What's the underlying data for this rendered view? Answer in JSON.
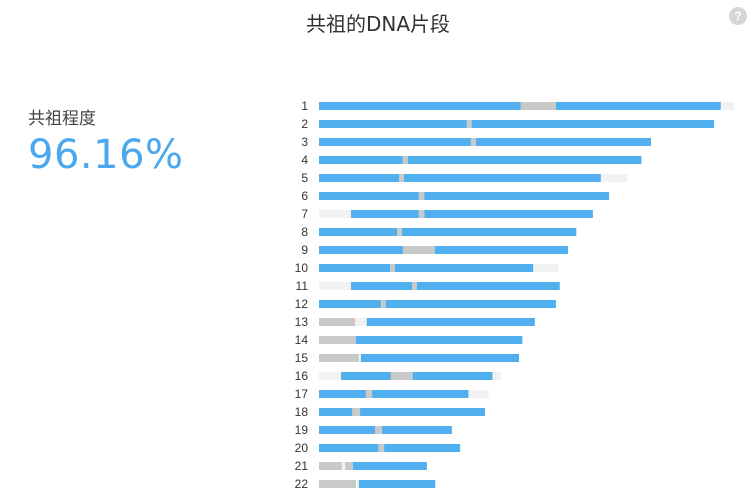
{
  "header": {
    "title": "共祖的DNA片段",
    "help_icon": "question-mark-icon",
    "help_glyph": "?"
  },
  "summary": {
    "label": "共祖程度",
    "value": "96.16%"
  },
  "colors": {
    "shared": "#4fafef",
    "gap": "#c9c9c9",
    "background_track": "#f2f2f2"
  },
  "chart_data": {
    "type": "bar",
    "orientation": "horizontal",
    "categories": [
      "1",
      "2",
      "3",
      "4",
      "5",
      "6",
      "7",
      "8",
      "9",
      "10",
      "11",
      "12",
      "13",
      "14",
      "15",
      "16",
      "17",
      "18",
      "19",
      "20",
      "21",
      "22"
    ],
    "units": "fraction of chromosome 1 length",
    "chromosomes": [
      {
        "label": "1",
        "length": 1.0,
        "blue": [
          [
            0.0,
            0.486
          ],
          [
            0.571,
            0.968
          ]
        ],
        "gray": [
          [
            0.486,
            0.571
          ]
        ]
      },
      {
        "label": "2",
        "length": 0.952,
        "blue": [
          [
            0.0,
            0.356
          ],
          [
            0.368,
            0.952
          ]
        ],
        "gray": [
          [
            0.356,
            0.368
          ]
        ]
      },
      {
        "label": "3",
        "length": 0.8,
        "blue": [
          [
            0.0,
            0.366
          ],
          [
            0.378,
            0.8
          ]
        ],
        "gray": [
          [
            0.366,
            0.378
          ]
        ]
      },
      {
        "label": "4",
        "length": 0.777,
        "blue": [
          [
            0.0,
            0.202
          ],
          [
            0.214,
            0.777
          ]
        ],
        "gray": [
          [
            0.202,
            0.214
          ]
        ]
      },
      {
        "label": "5",
        "length": 0.742,
        "blue": [
          [
            0.0,
            0.193
          ],
          [
            0.205,
            0.679
          ]
        ],
        "gray": [
          [
            0.193,
            0.205
          ]
        ]
      },
      {
        "label": "6",
        "length": 0.699,
        "blue": [
          [
            0.0,
            0.24
          ],
          [
            0.254,
            0.699
          ]
        ],
        "gray": [
          [
            0.24,
            0.254
          ]
        ]
      },
      {
        "label": "7",
        "length": 0.66,
        "blue": [
          [
            0.077,
            0.24
          ],
          [
            0.254,
            0.66
          ]
        ],
        "gray": [
          [
            0.24,
            0.254
          ]
        ]
      },
      {
        "label": "8",
        "length": 0.62,
        "blue": [
          [
            0.0,
            0.188
          ],
          [
            0.2,
            0.62
          ]
        ],
        "gray": [
          [
            0.188,
            0.2
          ]
        ]
      },
      {
        "label": "9",
        "length": 0.6,
        "blue": [
          [
            0.0,
            0.202
          ],
          [
            0.279,
            0.6
          ]
        ],
        "gray": [
          [
            0.202,
            0.279
          ]
        ]
      },
      {
        "label": "10",
        "length": 0.578,
        "blue": [
          [
            0.0,
            0.171
          ],
          [
            0.183,
            0.516
          ]
        ],
        "gray": [
          [
            0.171,
            0.183
          ]
        ]
      },
      {
        "label": "11",
        "length": 0.58,
        "blue": [
          [
            0.077,
            0.224
          ],
          [
            0.236,
            0.58
          ]
        ],
        "gray": [
          [
            0.224,
            0.236
          ]
        ]
      },
      {
        "label": "12",
        "length": 0.571,
        "blue": [
          [
            0.0,
            0.149
          ],
          [
            0.161,
            0.571
          ]
        ],
        "gray": [
          [
            0.149,
            0.161
          ]
        ]
      },
      {
        "label": "13",
        "length": 0.52,
        "blue": [
          [
            0.115,
            0.52
          ]
        ],
        "gray": [
          [
            0.0,
            0.087
          ]
        ]
      },
      {
        "label": "14",
        "length": 0.49,
        "blue": [
          [
            0.089,
            0.49
          ]
        ],
        "gray": [
          [
            0.0,
            0.089
          ]
        ]
      },
      {
        "label": "15",
        "length": 0.482,
        "blue": [
          [
            0.101,
            0.482
          ]
        ],
        "gray": [
          [
            0.0,
            0.096
          ]
        ]
      },
      {
        "label": "16",
        "length": 0.438,
        "blue": [
          [
            0.053,
            0.173
          ],
          [
            0.226,
            0.418
          ]
        ],
        "gray": [
          [
            0.173,
            0.226
          ]
        ]
      },
      {
        "label": "17",
        "length": 0.409,
        "blue": [
          [
            0.0,
            0.113
          ],
          [
            0.128,
            0.36
          ]
        ],
        "gray": [
          [
            0.113,
            0.128
          ]
        ]
      },
      {
        "label": "18",
        "length": 0.4,
        "blue": [
          [
            0.0,
            0.08
          ],
          [
            0.099,
            0.4
          ]
        ],
        "gray": [
          [
            0.08,
            0.099
          ]
        ]
      },
      {
        "label": "19",
        "length": 0.32,
        "blue": [
          [
            0.0,
            0.135
          ],
          [
            0.152,
            0.32
          ]
        ],
        "gray": [
          [
            0.135,
            0.152
          ]
        ]
      },
      {
        "label": "20",
        "length": 0.34,
        "blue": [
          [
            0.0,
            0.143
          ],
          [
            0.157,
            0.34
          ]
        ],
        "gray": [
          [
            0.143,
            0.157
          ]
        ]
      },
      {
        "label": "21",
        "length": 0.26,
        "blue": [
          [
            0.082,
            0.26
          ]
        ],
        "gray": [
          [
            0.0,
            0.055
          ],
          [
            0.063,
            0.082
          ]
        ]
      },
      {
        "label": "22",
        "length": 0.28,
        "blue": [
          [
            0.096,
            0.28
          ]
        ],
        "gray": [
          [
            0.0,
            0.089
          ]
        ]
      }
    ]
  }
}
